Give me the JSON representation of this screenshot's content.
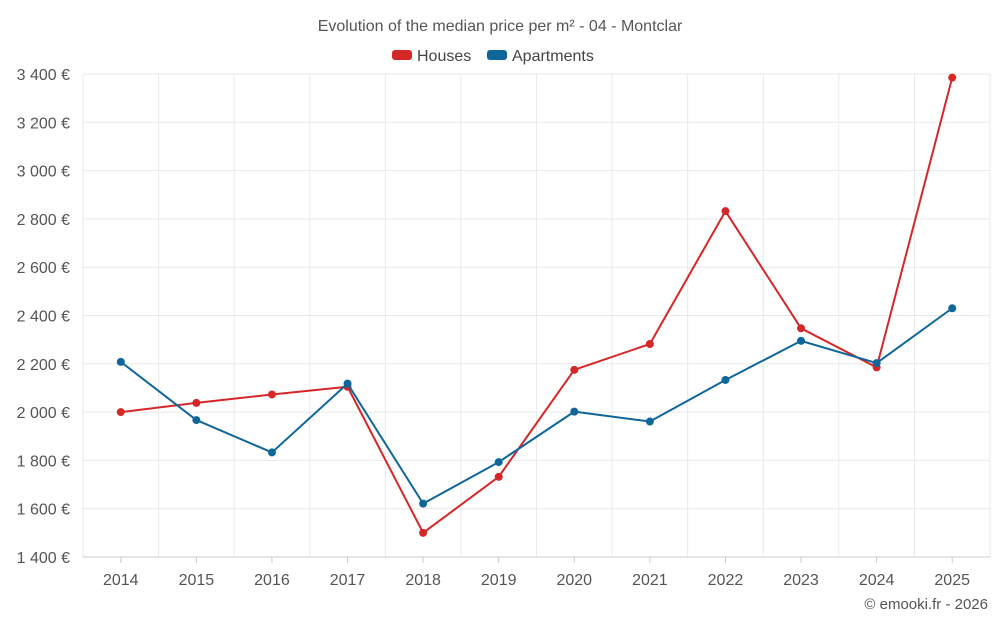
{
  "chart_data": {
    "type": "line",
    "title": "Evolution of the median price per m² - 04 - Montclar",
    "categories": [
      "2014",
      "2015",
      "2016",
      "2017",
      "2018",
      "2019",
      "2020",
      "2021",
      "2022",
      "2023",
      "2024",
      "2025"
    ],
    "series": [
      {
        "name": "Houses",
        "color": "#d62728",
        "values": [
          2000,
          2038,
          2073,
          2105,
          1500,
          1732,
          2175,
          2282,
          2832,
          2347,
          2185,
          3385
        ]
      },
      {
        "name": "Apartments",
        "color": "#0f6699",
        "values": [
          2208,
          1967,
          1833,
          2118,
          1621,
          1793,
          2002,
          1961,
          2133,
          2295,
          2203,
          2430
        ]
      }
    ],
    "y_ticks": [
      1400,
      1600,
      1800,
      2000,
      2200,
      2400,
      2600,
      2800,
      3000,
      3200,
      3400
    ],
    "y_tick_labels": [
      "1 400 €",
      "1 600 €",
      "1 800 €",
      "2 000 €",
      "2 200 €",
      "2 400 €",
      "2 600 €",
      "2 800 €",
      "3 000 €",
      "3 200 €",
      "3 400 €"
    ],
    "ylim": [
      1400,
      3400
    ],
    "xlabel": "",
    "ylabel": "",
    "grid": true,
    "legend_position": "top-center"
  },
  "credit": "© emooki.fr - 2026"
}
